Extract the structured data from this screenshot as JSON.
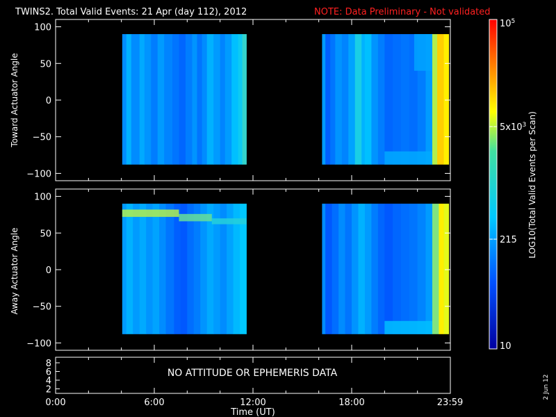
{
  "header": {
    "title": "TWINS2. Total Valid Events: 21 Apr (day 112), 2012",
    "note": "NOTE: Data Preliminary - Not validated"
  },
  "colors": {
    "background": "#000000",
    "foreground": "#ffffff",
    "note": "#ff2020",
    "colormap": [
      "#0000a0",
      "#0050ff",
      "#00c8ff",
      "#ffff00",
      "#ff8000",
      "#ff0000"
    ]
  },
  "colorbar": {
    "label": "LOG10(Total Valid Events per Scan)",
    "scale": "log",
    "range": [
      10,
      100000
    ],
    "ticks": [
      {
        "value": 10,
        "label": "10"
      },
      {
        "value": 215,
        "label": "215"
      },
      {
        "value": 5000,
        "label": "5x10^3"
      },
      {
        "value": 100000,
        "label": "10^5"
      }
    ]
  },
  "status_panel": {
    "message": "NO ATTITUDE OR EPHEMERIS DATA",
    "yticks": [
      "8",
      "6",
      "4",
      "2"
    ]
  },
  "xaxis": {
    "label": "Time (UT)",
    "ticks": [
      "0:00",
      "6:00",
      "12:00",
      "18:00",
      "23:59"
    ]
  },
  "date_stamp": "2 Jun 12",
  "chart_data": [
    {
      "type": "heatmap",
      "name": "toward",
      "ylabel": "Toward Actuator Angle",
      "xlabel": "",
      "x_unit": "hours UT",
      "xlim": [
        0,
        24
      ],
      "ylim": [
        -110,
        110
      ],
      "yticks": [
        100,
        50,
        0,
        -50,
        -100
      ],
      "grid": false,
      "legend": "colorbar-right",
      "data_intervals": [
        {
          "start": 4.05,
          "end": 11.6,
          "angle_range": [
            -88,
            90
          ]
        },
        {
          "start": 16.2,
          "end": 23.9,
          "angle_range": [
            -88,
            90
          ]
        }
      ],
      "columns": [
        {
          "start": 4.05,
          "end": 4.3,
          "level": 2.2
        },
        {
          "start": 4.3,
          "end": 4.6,
          "level": 2.45
        },
        {
          "start": 4.6,
          "end": 5.1,
          "level": 2.2
        },
        {
          "start": 5.1,
          "end": 5.4,
          "level": 2.4
        },
        {
          "start": 5.4,
          "end": 5.8,
          "level": 2.25
        },
        {
          "start": 5.8,
          "end": 6.2,
          "level": 2.1
        },
        {
          "start": 6.2,
          "end": 6.6,
          "level": 2.3
        },
        {
          "start": 6.6,
          "end": 7.1,
          "level": 2.15
        },
        {
          "start": 7.1,
          "end": 7.5,
          "level": 2.05
        },
        {
          "start": 7.5,
          "end": 7.9,
          "level": 1.95
        },
        {
          "start": 7.9,
          "end": 8.3,
          "level": 2.1
        },
        {
          "start": 8.3,
          "end": 8.6,
          "level": 2.25
        },
        {
          "start": 8.6,
          "end": 8.9,
          "level": 2.05
        },
        {
          "start": 8.9,
          "end": 9.2,
          "level": 2.2
        },
        {
          "start": 9.2,
          "end": 9.6,
          "level": 2.45
        },
        {
          "start": 9.6,
          "end": 10.0,
          "level": 2.3
        },
        {
          "start": 10.0,
          "end": 10.3,
          "level": 2.15
        },
        {
          "start": 10.3,
          "end": 10.7,
          "level": 2.3
        },
        {
          "start": 10.7,
          "end": 11.1,
          "level": 2.55
        },
        {
          "start": 11.1,
          "end": 11.35,
          "level": 2.65
        },
        {
          "start": 11.35,
          "end": 11.6,
          "level": 2.8
        },
        {
          "start": 16.2,
          "end": 16.4,
          "level": 2.3
        },
        {
          "start": 16.4,
          "end": 16.7,
          "level": 1.9
        },
        {
          "start": 16.7,
          "end": 17.0,
          "level": 2.05
        },
        {
          "start": 17.0,
          "end": 17.4,
          "level": 2.25
        },
        {
          "start": 17.4,
          "end": 17.8,
          "level": 2.15
        },
        {
          "start": 17.8,
          "end": 18.2,
          "level": 2.35
        },
        {
          "start": 18.2,
          "end": 18.6,
          "level": 2.7
        },
        {
          "start": 18.6,
          "end": 18.8,
          "level": 2.45
        },
        {
          "start": 18.8,
          "end": 19.2,
          "level": 2.55
        },
        {
          "start": 19.2,
          "end": 19.6,
          "level": 2.25
        },
        {
          "start": 19.6,
          "end": 20.0,
          "level": 2.1
        },
        {
          "start": 20.0,
          "end": 20.5,
          "level": 1.95
        },
        {
          "start": 20.5,
          "end": 21.0,
          "level": 2.0
        },
        {
          "start": 21.0,
          "end": 21.5,
          "level": 2.05
        },
        {
          "start": 21.5,
          "end": 22.0,
          "level": 2.0
        },
        {
          "start": 22.0,
          "end": 22.5,
          "level": 2.1
        },
        {
          "start": 22.5,
          "end": 22.9,
          "level": 2.3
        },
        {
          "start": 22.9,
          "end": 23.2,
          "level": 3.3
        },
        {
          "start": 23.2,
          "end": 23.6,
          "level": 3.9
        },
        {
          "start": 23.6,
          "end": 23.9,
          "level": 3.7
        }
      ],
      "features": [
        {
          "start": 20.0,
          "end": 22.9,
          "angle_range": [
            -88,
            -70
          ],
          "level": 2.4
        },
        {
          "start": 21.8,
          "end": 22.9,
          "angle_range": [
            40,
            90
          ],
          "level": 2.35
        }
      ]
    },
    {
      "type": "heatmap",
      "name": "away",
      "ylabel": "Away Actuator Angle",
      "xlabel": "Time (UT)",
      "x_unit": "hours UT",
      "xlim": [
        0,
        24
      ],
      "ylim": [
        -110,
        110
      ],
      "yticks": [
        100,
        50,
        0,
        -50,
        -100
      ],
      "grid": false,
      "legend": "colorbar-right",
      "data_intervals": [
        {
          "start": 4.05,
          "end": 11.6,
          "angle_range": [
            -88,
            90
          ]
        },
        {
          "start": 16.2,
          "end": 23.9,
          "angle_range": [
            -88,
            90
          ]
        }
      ],
      "columns": [
        {
          "start": 4.05,
          "end": 4.3,
          "level": 2.3
        },
        {
          "start": 4.3,
          "end": 4.7,
          "level": 2.45
        },
        {
          "start": 4.7,
          "end": 5.1,
          "level": 2.3
        },
        {
          "start": 5.1,
          "end": 5.5,
          "level": 2.4
        },
        {
          "start": 5.5,
          "end": 5.9,
          "level": 2.25
        },
        {
          "start": 5.9,
          "end": 6.3,
          "level": 2.35
        },
        {
          "start": 6.3,
          "end": 6.7,
          "level": 2.2
        },
        {
          "start": 6.7,
          "end": 7.2,
          "level": 2.05
        },
        {
          "start": 7.2,
          "end": 7.6,
          "level": 1.9
        },
        {
          "start": 7.6,
          "end": 8.0,
          "level": 1.85
        },
        {
          "start": 8.0,
          "end": 8.4,
          "level": 2.0
        },
        {
          "start": 8.4,
          "end": 8.8,
          "level": 2.1
        },
        {
          "start": 8.8,
          "end": 9.2,
          "level": 2.25
        },
        {
          "start": 9.2,
          "end": 9.6,
          "level": 2.4
        },
        {
          "start": 9.6,
          "end": 10.0,
          "level": 2.3
        },
        {
          "start": 10.0,
          "end": 10.4,
          "level": 2.2
        },
        {
          "start": 10.4,
          "end": 10.8,
          "level": 2.35
        },
        {
          "start": 10.8,
          "end": 11.2,
          "level": 2.5
        },
        {
          "start": 11.2,
          "end": 11.6,
          "level": 2.6
        },
        {
          "start": 16.2,
          "end": 16.4,
          "level": 2.2
        },
        {
          "start": 16.4,
          "end": 16.8,
          "level": 1.85
        },
        {
          "start": 16.8,
          "end": 17.2,
          "level": 2.0
        },
        {
          "start": 17.2,
          "end": 17.6,
          "level": 2.2
        },
        {
          "start": 17.6,
          "end": 18.0,
          "level": 2.05
        },
        {
          "start": 18.0,
          "end": 18.4,
          "level": 2.25
        },
        {
          "start": 18.4,
          "end": 18.8,
          "level": 2.45
        },
        {
          "start": 18.8,
          "end": 19.2,
          "level": 2.3
        },
        {
          "start": 19.2,
          "end": 19.6,
          "level": 2.1
        },
        {
          "start": 19.6,
          "end": 20.0,
          "level": 1.95
        },
        {
          "start": 20.0,
          "end": 20.5,
          "level": 1.85
        },
        {
          "start": 20.5,
          "end": 21.0,
          "level": 1.95
        },
        {
          "start": 21.0,
          "end": 21.5,
          "level": 2.0
        },
        {
          "start": 21.5,
          "end": 22.0,
          "level": 2.05
        },
        {
          "start": 22.0,
          "end": 22.5,
          "level": 2.15
        },
        {
          "start": 22.5,
          "end": 22.9,
          "level": 2.3
        },
        {
          "start": 22.9,
          "end": 23.3,
          "level": 3.1
        },
        {
          "start": 23.3,
          "end": 23.6,
          "level": 3.7
        },
        {
          "start": 23.6,
          "end": 23.9,
          "level": 3.5
        }
      ],
      "features": [
        {
          "start": 4.05,
          "end": 7.5,
          "angle_range": [
            72,
            82
          ],
          "level": 3.3
        },
        {
          "start": 7.5,
          "end": 9.5,
          "angle_range": [
            66,
            76
          ],
          "level": 3.0
        },
        {
          "start": 9.5,
          "end": 11.6,
          "angle_range": [
            62,
            70
          ],
          "level": 2.75
        },
        {
          "start": 20.0,
          "end": 22.9,
          "angle_range": [
            -88,
            -70
          ],
          "level": 2.55
        }
      ]
    }
  ]
}
